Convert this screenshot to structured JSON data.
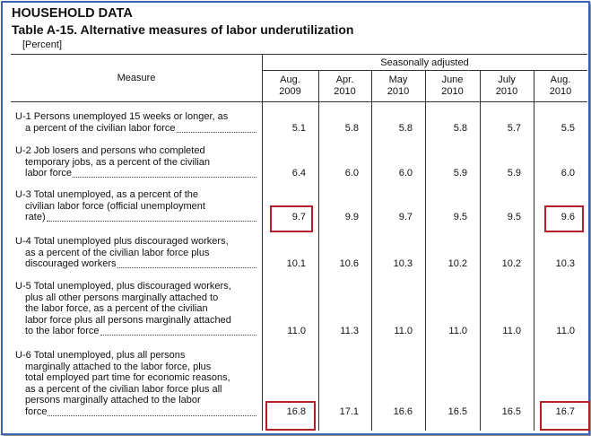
{
  "header": {
    "title": "HOUSEHOLD DATA",
    "table_title": "Table A-15. Alternative measures of labor underutilization",
    "unit": "[Percent]"
  },
  "table": {
    "measure_header": "Measure",
    "group_header": "Seasonally adjusted",
    "columns": [
      [
        "Aug.",
        "2009"
      ],
      [
        "Apr.",
        "2010"
      ],
      [
        "May",
        "2010"
      ],
      [
        "June",
        "2010"
      ],
      [
        "July",
        "2010"
      ],
      [
        "Aug.",
        "2010"
      ]
    ],
    "rows": [
      {
        "measure": [
          "U-1 Persons unemployed 15 weeks or longer, as",
          "a percent of the civilian labor force"
        ],
        "values": [
          "5.1",
          "5.8",
          "5.8",
          "5.8",
          "5.7",
          "5.5"
        ]
      },
      {
        "measure": [
          "U-2 Job losers and persons who completed",
          "temporary jobs, as a percent of the civilian",
          "labor force"
        ],
        "values": [
          "6.4",
          "6.0",
          "6.0",
          "5.9",
          "5.9",
          "6.0"
        ]
      },
      {
        "measure": [
          "U-3 Total unemployed, as a percent of the",
          "civilian labor force (official unemployment",
          "rate)"
        ],
        "values": [
          "9.7",
          "9.9",
          "9.7",
          "9.5",
          "9.5",
          "9.6"
        ]
      },
      {
        "measure": [
          "U-4 Total unemployed plus discouraged workers,",
          "as a percent of the civilian labor force plus",
          "discouraged workers"
        ],
        "values": [
          "10.1",
          "10.6",
          "10.3",
          "10.2",
          "10.2",
          "10.3"
        ]
      },
      {
        "measure": [
          "U-5 Total unemployed, plus discouraged workers,",
          "plus all other persons marginally attached to",
          "the labor force, as a percent of the civilian",
          "labor force plus all persons marginally attached",
          "to the labor force"
        ],
        "values": [
          "11.0",
          "11.3",
          "11.0",
          "11.0",
          "11.0",
          "11.0"
        ]
      },
      {
        "measure": [
          "U-6 Total unemployed, plus all persons",
          "marginally attached to the labor force, plus",
          "total employed part time for economic reasons,",
          "as a percent of the civilian labor force plus all",
          "persons marginally attached to the labor",
          "force"
        ],
        "values": [
          "16.8",
          "17.1",
          "16.6",
          "16.5",
          "16.5",
          "16.7"
        ]
      }
    ]
  }
}
